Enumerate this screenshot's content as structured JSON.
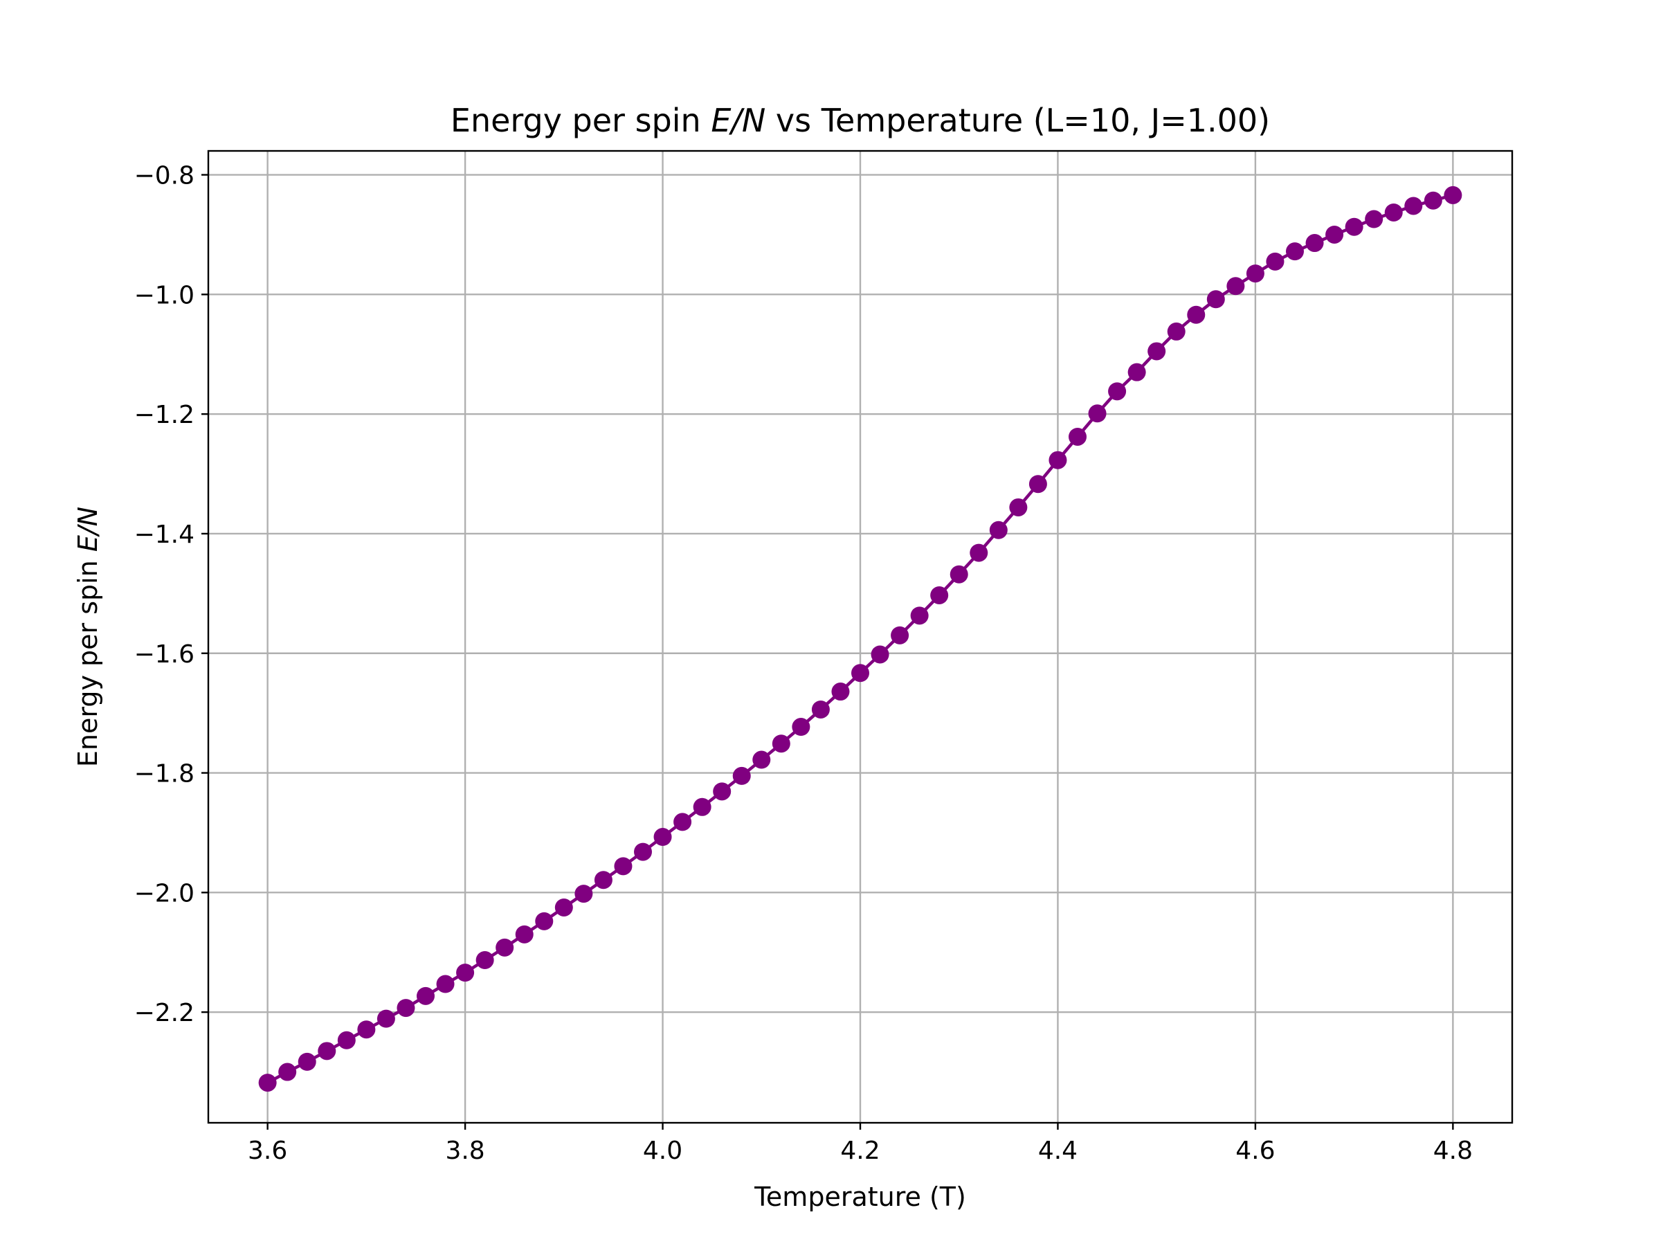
{
  "chart_data": {
    "type": "line",
    "title": "Energy per spin E/N vs Temperature (L=10, J=1.00)",
    "title_parts": {
      "before": "Energy per spin ",
      "italic": "E/N",
      "after": " vs Temperature (L=10, J=1.00)"
    },
    "xlabel": "Temperature (T)",
    "ylabel": "Energy per spin E/N",
    "ylabel_parts": {
      "before": "Energy per spin ",
      "italic": "E/N"
    },
    "xlim": [
      3.54,
      4.86
    ],
    "ylim": [
      -2.385,
      -0.76
    ],
    "x_ticks": [
      3.6,
      3.8,
      4.0,
      4.2,
      4.4,
      4.6,
      4.8
    ],
    "x_tick_labels": [
      "3.6",
      "3.8",
      "4.0",
      "4.2",
      "4.4",
      "4.6",
      "4.8"
    ],
    "y_ticks": [
      -2.2,
      -2.0,
      -1.8,
      -1.6,
      -1.4,
      -1.2,
      -1.0,
      -0.8
    ],
    "y_tick_labels": [
      "−2.2",
      "−2.0",
      "−1.8",
      "−1.6",
      "−1.4",
      "−1.2",
      "−1.0",
      "−0.8"
    ],
    "grid": true,
    "color": "#800080",
    "marker": "circle",
    "series": [
      {
        "x": [
          3.6,
          3.62,
          3.64,
          3.66,
          3.68,
          3.7,
          3.72,
          3.74,
          3.76,
          3.78,
          3.8,
          3.82,
          3.84,
          3.86,
          3.88,
          3.9,
          3.92,
          3.94,
          3.96,
          3.98,
          4.0,
          4.02,
          4.04,
          4.06,
          4.08,
          4.1,
          4.12,
          4.14,
          4.16,
          4.18,
          4.2,
          4.22,
          4.24,
          4.26,
          4.28,
          4.3,
          4.32,
          4.34,
          4.36,
          4.38,
          4.4,
          4.42,
          4.44,
          4.46,
          4.48,
          4.5,
          4.52,
          4.54,
          4.56,
          4.58,
          4.6,
          4.62,
          4.64,
          4.66,
          4.68,
          4.7,
          4.72,
          4.74,
          4.76,
          4.78,
          4.8
        ],
        "y": [
          -2.318,
          -2.3,
          -2.283,
          -2.265,
          -2.247,
          -2.229,
          -2.211,
          -2.193,
          -2.173,
          -2.153,
          -2.134,
          -2.113,
          -2.092,
          -2.07,
          -2.048,
          -2.025,
          -2.002,
          -1.979,
          -1.956,
          -1.932,
          -1.907,
          -1.882,
          -1.857,
          -1.831,
          -1.805,
          -1.778,
          -1.751,
          -1.723,
          -1.694,
          -1.664,
          -1.633,
          -1.602,
          -1.57,
          -1.537,
          -1.503,
          -1.468,
          -1.432,
          -1.394,
          -1.356,
          -1.317,
          -1.277,
          -1.238,
          -1.199,
          -1.162,
          -1.13,
          -1.095,
          -1.062,
          -1.034,
          -1.008,
          -0.986,
          -0.965,
          -0.945,
          -0.928,
          -0.914,
          -0.9,
          -0.887,
          -0.874,
          -0.863,
          -0.852,
          -0.843,
          -0.834
        ]
      }
    ]
  }
}
